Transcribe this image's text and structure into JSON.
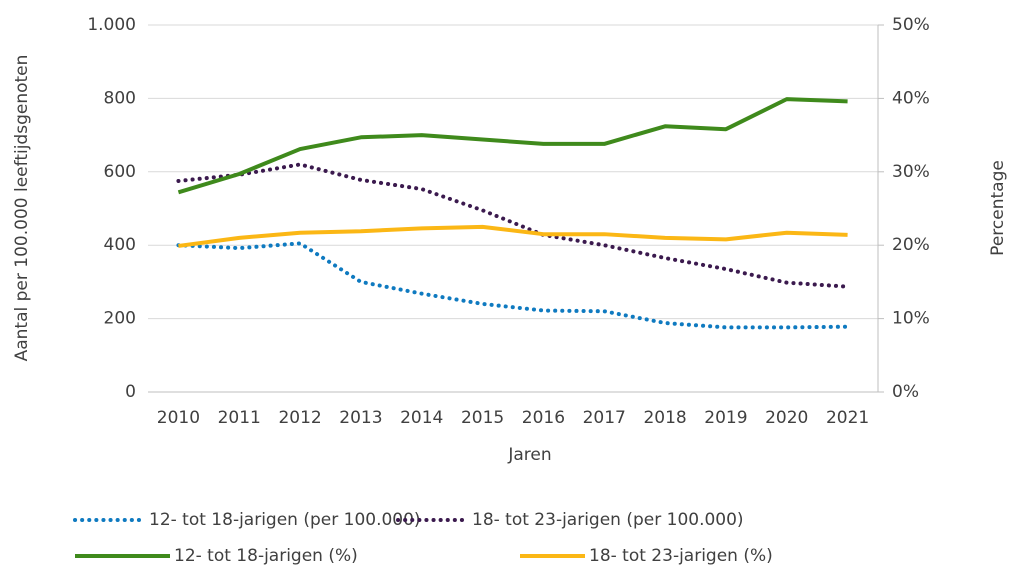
{
  "chart_data": {
    "type": "line",
    "categories": [
      "2010",
      "2011",
      "2012",
      "2013",
      "2014",
      "2015",
      "2016",
      "2017",
      "2018",
      "2019",
      "2020",
      "2021"
    ],
    "series": [
      {
        "name": "12- tot 18-jarigen (per 100.000)",
        "color": "#0f7ac0",
        "dash": "dotted",
        "values": [
          400,
          392,
          405,
          300,
          268,
          240,
          222,
          220,
          188,
          176,
          176,
          178
        ]
      },
      {
        "name": "18- tot 23-jarigen (per 100.000)",
        "color": "#3b1a4e",
        "dash": "dotted",
        "values": [
          575,
          592,
          620,
          578,
          553,
          495,
          428,
          400,
          365,
          335,
          298,
          287
        ]
      },
      {
        "name": "12- tot 18-jarigen (%)",
        "color": "#3f8a1c",
        "dash": "solid",
        "axis": "y2",
        "values": [
          27.2,
          29.7,
          33.1,
          34.7,
          35.0,
          34.4,
          33.8,
          33.8,
          36.2,
          35.8,
          39.9,
          39.6
        ]
      },
      {
        "name": "18- tot 23-jarigen (%)",
        "color": "#fbb715",
        "dash": "solid",
        "axis": "y2",
        "values": [
          19.9,
          21.0,
          21.7,
          21.9,
          22.3,
          22.5,
          21.5,
          21.5,
          21.0,
          20.8,
          21.7,
          21.4
        ]
      }
    ],
    "ylabel": "Aantal per 100.000 leeftijdsgenoten",
    "y2label": "Percentage",
    "xlabel": "Jaren",
    "ylim": [
      0,
      1000
    ],
    "yticks": [
      0,
      200,
      400,
      600,
      800,
      {
        "value": 1000,
        "label": "1.000"
      }
    ],
    "y2lim": [
      0,
      50
    ],
    "y2ticks": [
      {
        "value": 0,
        "label": "0%"
      },
      {
        "value": 10,
        "label": "10%"
      },
      {
        "value": 20,
        "label": "20%"
      },
      {
        "value": 30,
        "label": "30%"
      },
      {
        "value": 40,
        "label": "40%"
      },
      {
        "value": 50,
        "label": "50%"
      }
    ],
    "grid": true,
    "legend": "bottom"
  }
}
